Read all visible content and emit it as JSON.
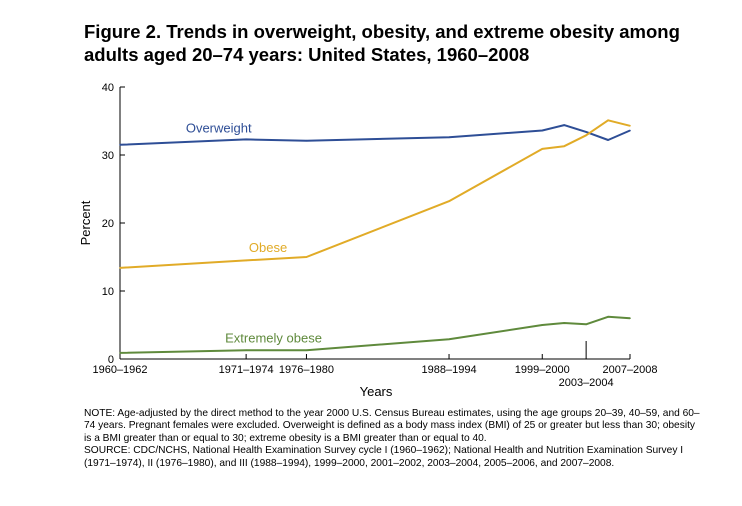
{
  "figure": {
    "title_line1": "Figure 2. Trends in overweight, obesity, and extreme obesity among",
    "title_line2": "adults aged 20–74 years: United States, 1960–2008"
  },
  "chart_data": {
    "type": "line",
    "title": "Figure 2. Trends in overweight, obesity, and extreme obesity among adults aged 20–74 years: United States, 1960–2008",
    "xlabel": "Years",
    "ylabel": "Percent",
    "ylim": [
      0,
      40
    ],
    "xlim": [
      1961,
      2007.5
    ],
    "yticks": [
      0,
      10,
      20,
      30,
      40
    ],
    "xticks": [
      {
        "label": "1960–1962",
        "x": 1961,
        "row": 0
      },
      {
        "label": "1971–1974",
        "x": 1972.5,
        "row": 0
      },
      {
        "label": "1976–1980",
        "x": 1978,
        "row": 0
      },
      {
        "label": "1988–1994",
        "x": 1991,
        "row": 0
      },
      {
        "label": "1999–2000",
        "x": 1999.5,
        "row": 0
      },
      {
        "label": "2003–2004",
        "x": 2003.5,
        "row": 1
      },
      {
        "label": "2007–2008",
        "x": 2007.5,
        "row": 0
      }
    ],
    "series": [
      {
        "name": "Overweight",
        "color": "#2e4e96",
        "x": [
          1961,
          1972.5,
          1978,
          1991,
          1999.5,
          2001.5,
          2003.5,
          2005.5,
          2007.5
        ],
        "values": [
          31.5,
          32.3,
          32.1,
          32.6,
          33.6,
          34.4,
          33.4,
          32.2,
          33.6
        ],
        "label_at": [
          1970,
          33.3
        ]
      },
      {
        "name": "Obese",
        "color": "#e1ab27",
        "x": [
          1961,
          1972.5,
          1978,
          1991,
          1999.5,
          2001.5,
          2003.5,
          2005.5,
          2007.5
        ],
        "values": [
          13.4,
          14.5,
          15.0,
          23.2,
          30.9,
          31.3,
          32.9,
          35.1,
          34.3
        ],
        "label_at": [
          1974.5,
          15.7
        ]
      },
      {
        "name": "Extremely obese",
        "color": "#5f8a3c",
        "x": [
          1961,
          1972.5,
          1978,
          1991,
          1999.5,
          2001.5,
          2003.5,
          2005.5,
          2007.5
        ],
        "values": [
          0.9,
          1.3,
          1.3,
          2.9,
          5.0,
          5.3,
          5.1,
          6.2,
          6.0
        ],
        "label_at": [
          1975,
          2.4
        ]
      }
    ]
  },
  "notes": {
    "note": "NOTE: Age-adjusted by the direct method to the year 2000 U.S. Census Bureau estimates, using the age groups 20–39, 40–59, and 60–74 years. Pregnant females were excluded. Overweight is defined as a body mass index (BMI) of 25 or greater but less than 30; obesity is a BMI greater than or equal to 30; extreme obesity is a BMI greater than or equal to 40.",
    "source": "SOURCE: CDC/NCHS, National Health Examination Survey cycle I (1960–1962); National Health and Nutrition Examination Survey I (1971–1974), II (1976–1980), and III (1988–1994), 1999–2000, 2001–2002, 2003–2004, 2005–2006, and 2007–2008."
  }
}
